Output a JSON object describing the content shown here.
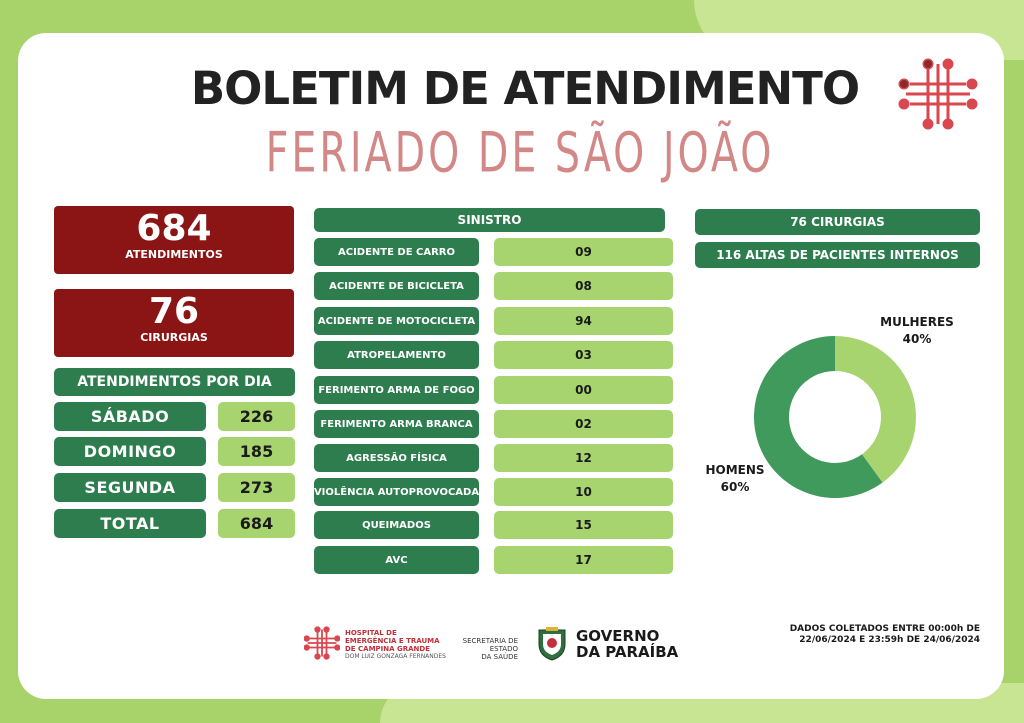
{
  "header": {
    "title": "BOLETIM DE ATENDIMENTO",
    "subtitle": "FERIADO DE SÃO JOÃO"
  },
  "summary": {
    "atendimentos_num": "684",
    "atendimentos_label": "ATENDIMENTOS",
    "cirurgias_num": "76",
    "cirurgias_label": "CIRURGIAS"
  },
  "per_day": {
    "title": "ATENDIMENTOS POR DIA",
    "rows": [
      {
        "label": "SÁBADO",
        "value": "226"
      },
      {
        "label": "DOMINGO",
        "value": "185"
      },
      {
        "label": "SEGUNDA",
        "value": "273"
      },
      {
        "label": "TOTAL",
        "value": "684"
      }
    ]
  },
  "sinistro": {
    "title": "SINISTRO",
    "rows": [
      {
        "label": "ACIDENTE DE CARRO",
        "value": "09"
      },
      {
        "label": "ACIDENTE DE BICICLETA",
        "value": "08"
      },
      {
        "label": "ACIDENTE DE MOTOCICLETA",
        "value": "94"
      },
      {
        "label": "ATROPELAMENTO",
        "value": "03"
      },
      {
        "label": "FERIMENTO ARMA DE FOGO",
        "value": "00"
      },
      {
        "label": "FERIMENTO ARMA BRANCA",
        "value": "02"
      },
      {
        "label": "AGRESSÃO FÍSICA",
        "value": "12"
      },
      {
        "label": "VIOLÊNCIA AUTOPROVOCADA",
        "value": "10"
      },
      {
        "label": "QUEIMADOS",
        "value": "15"
      },
      {
        "label": "AVC",
        "value": "17"
      }
    ]
  },
  "right": {
    "cirurgias": "76  CIRURGIAS",
    "altas": "116 ALTAS DE PACIENTES INTERNOS"
  },
  "donut": {
    "women_label": "MULHERES",
    "women_pct": "40%",
    "women_fraction": 0.4,
    "men_label": "HOMENS",
    "men_pct": "60%",
    "men_fraction": 0.6,
    "colors": {
      "women": "#a8d46f",
      "men": "#3f9a5c"
    }
  },
  "footer": {
    "hospital_line1": "HOSPITAL DE",
    "hospital_line2": "EMERGÊNCIA E TRAUMA",
    "hospital_line3": "DE CAMPINA GRANDE",
    "hospital_line4": "DOM LUIZ GONZAGA FERNANDES",
    "secretaria_line1": "SECRETARIA DE ESTADO",
    "secretaria_line2": "DA SAÚDE",
    "governo_line1": "GOVERNO",
    "governo_line2": "DA PARAÍBA",
    "dados_line1": "DADOS COLETADOS ENTRE 00:00h DE",
    "dados_line2": "22/06/2024 E 23:59h DE  24/06/2024"
  },
  "icons": {
    "top_logo": "hospital-cross-icon",
    "footer_logo": "hospital-cross-icon",
    "shield": "paraiba-shield-icon"
  },
  "colors": {
    "dark_green": "#2e7d4f",
    "light_green": "#a8d46f",
    "dark_red": "#8b1515",
    "subtitle_pink": "#d38888"
  }
}
